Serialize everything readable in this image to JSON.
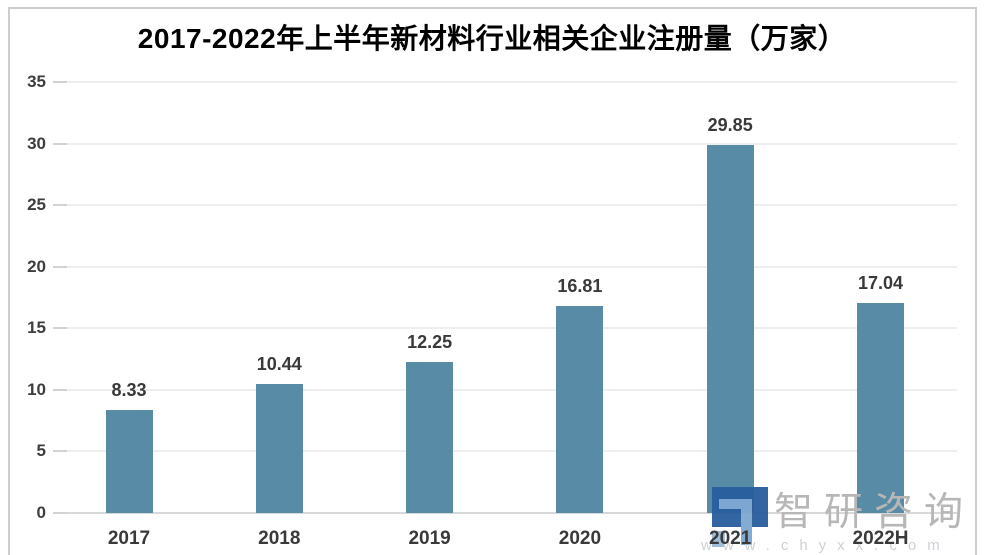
{
  "chart_data": {
    "type": "bar",
    "title": "2017-2022年上半年新材料行业相关企业注册量（万家）",
    "categories": [
      "2017",
      "2018",
      "2019",
      "2020",
      "2021",
      "2022H"
    ],
    "values": [
      8.33,
      10.44,
      12.25,
      16.81,
      29.85,
      17.04
    ],
    "xlabel": "",
    "ylabel": "",
    "ylim": [
      0,
      35
    ],
    "yticks": [
      0,
      5,
      10,
      15,
      20,
      25,
      30,
      35
    ],
    "grid": true,
    "legend": "none",
    "data_labels": true,
    "bar_color": "#588ba6"
  },
  "watermark": {
    "brand": "智研咨询",
    "site": "www.chyxx.com",
    "logo_dark": "#2a5f9f",
    "logo_light": "#7fa9d2",
    "logo_light2": "#9dbbd9"
  },
  "colors": {
    "grid": "#eeeeee",
    "axis": "#d8d8d8",
    "tick_label": "#3d3d3d",
    "frame_border": "#cdcdcd",
    "title": "#000000"
  }
}
